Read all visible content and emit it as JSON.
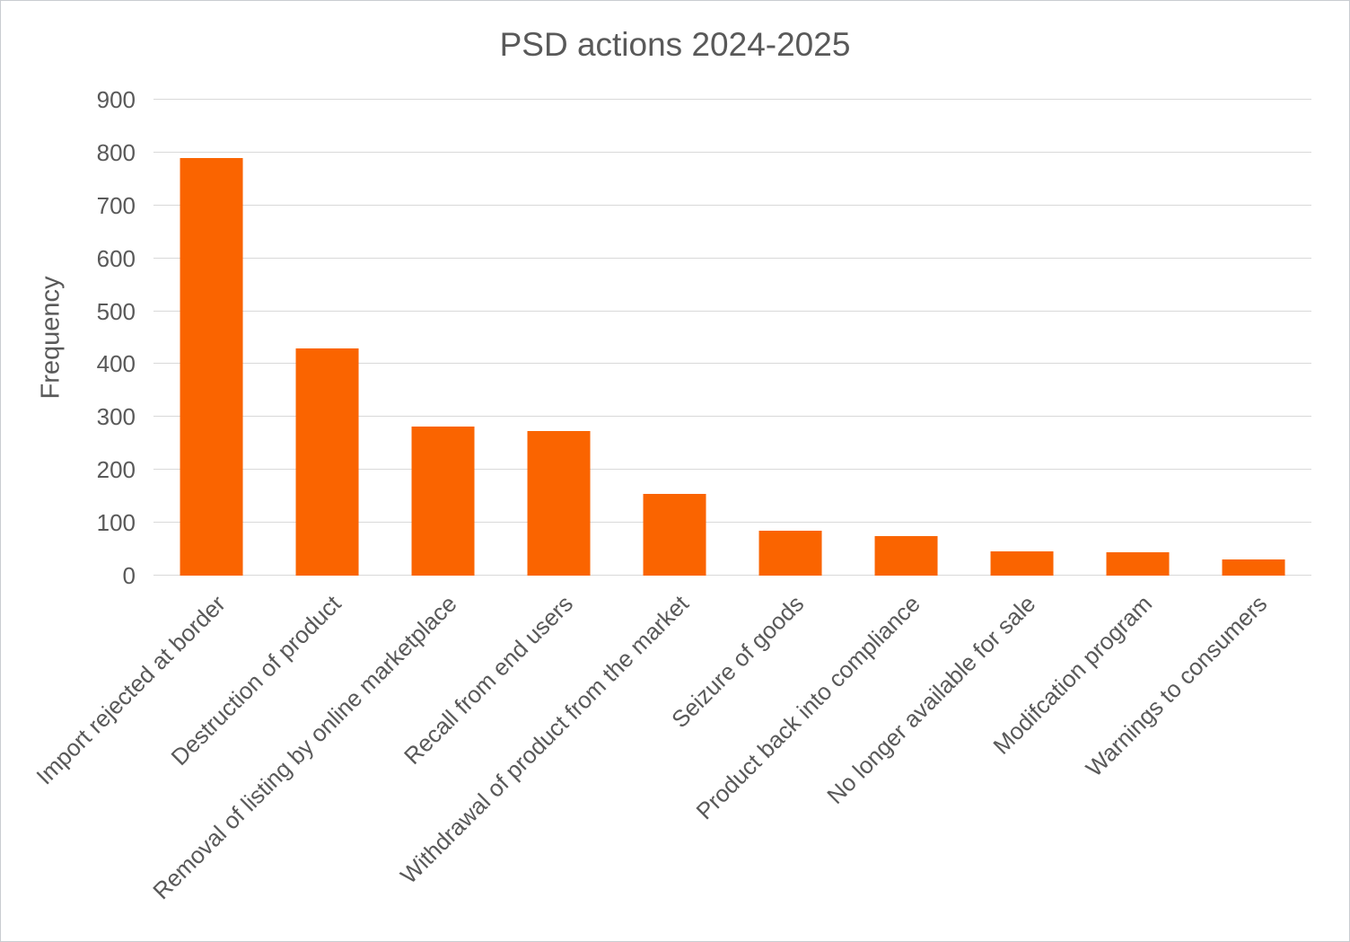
{
  "chart_data": {
    "type": "bar",
    "title": "PSD actions 2024-2025",
    "xlabel": "",
    "ylabel": "Frequency",
    "categories": [
      "Import rejected at border",
      "Destruction of product",
      "Removal of listing by online marketplace",
      "Recall from end users",
      "Withdrawal of product from the market",
      "Seizure of goods",
      "Product back into compliance",
      "No longer available for sale",
      "Modifcation program",
      "Warnings to consumers"
    ],
    "values": [
      790,
      430,
      282,
      273,
      155,
      85,
      75,
      46,
      45,
      30
    ],
    "ylim": [
      0,
      900
    ],
    "ytick_step": 100,
    "grid": true,
    "legend": "none",
    "bar_color": "#fa6400",
    "text_color": "#595959",
    "grid_color": "#d9d9d9",
    "background_color": "#ffffff"
  }
}
